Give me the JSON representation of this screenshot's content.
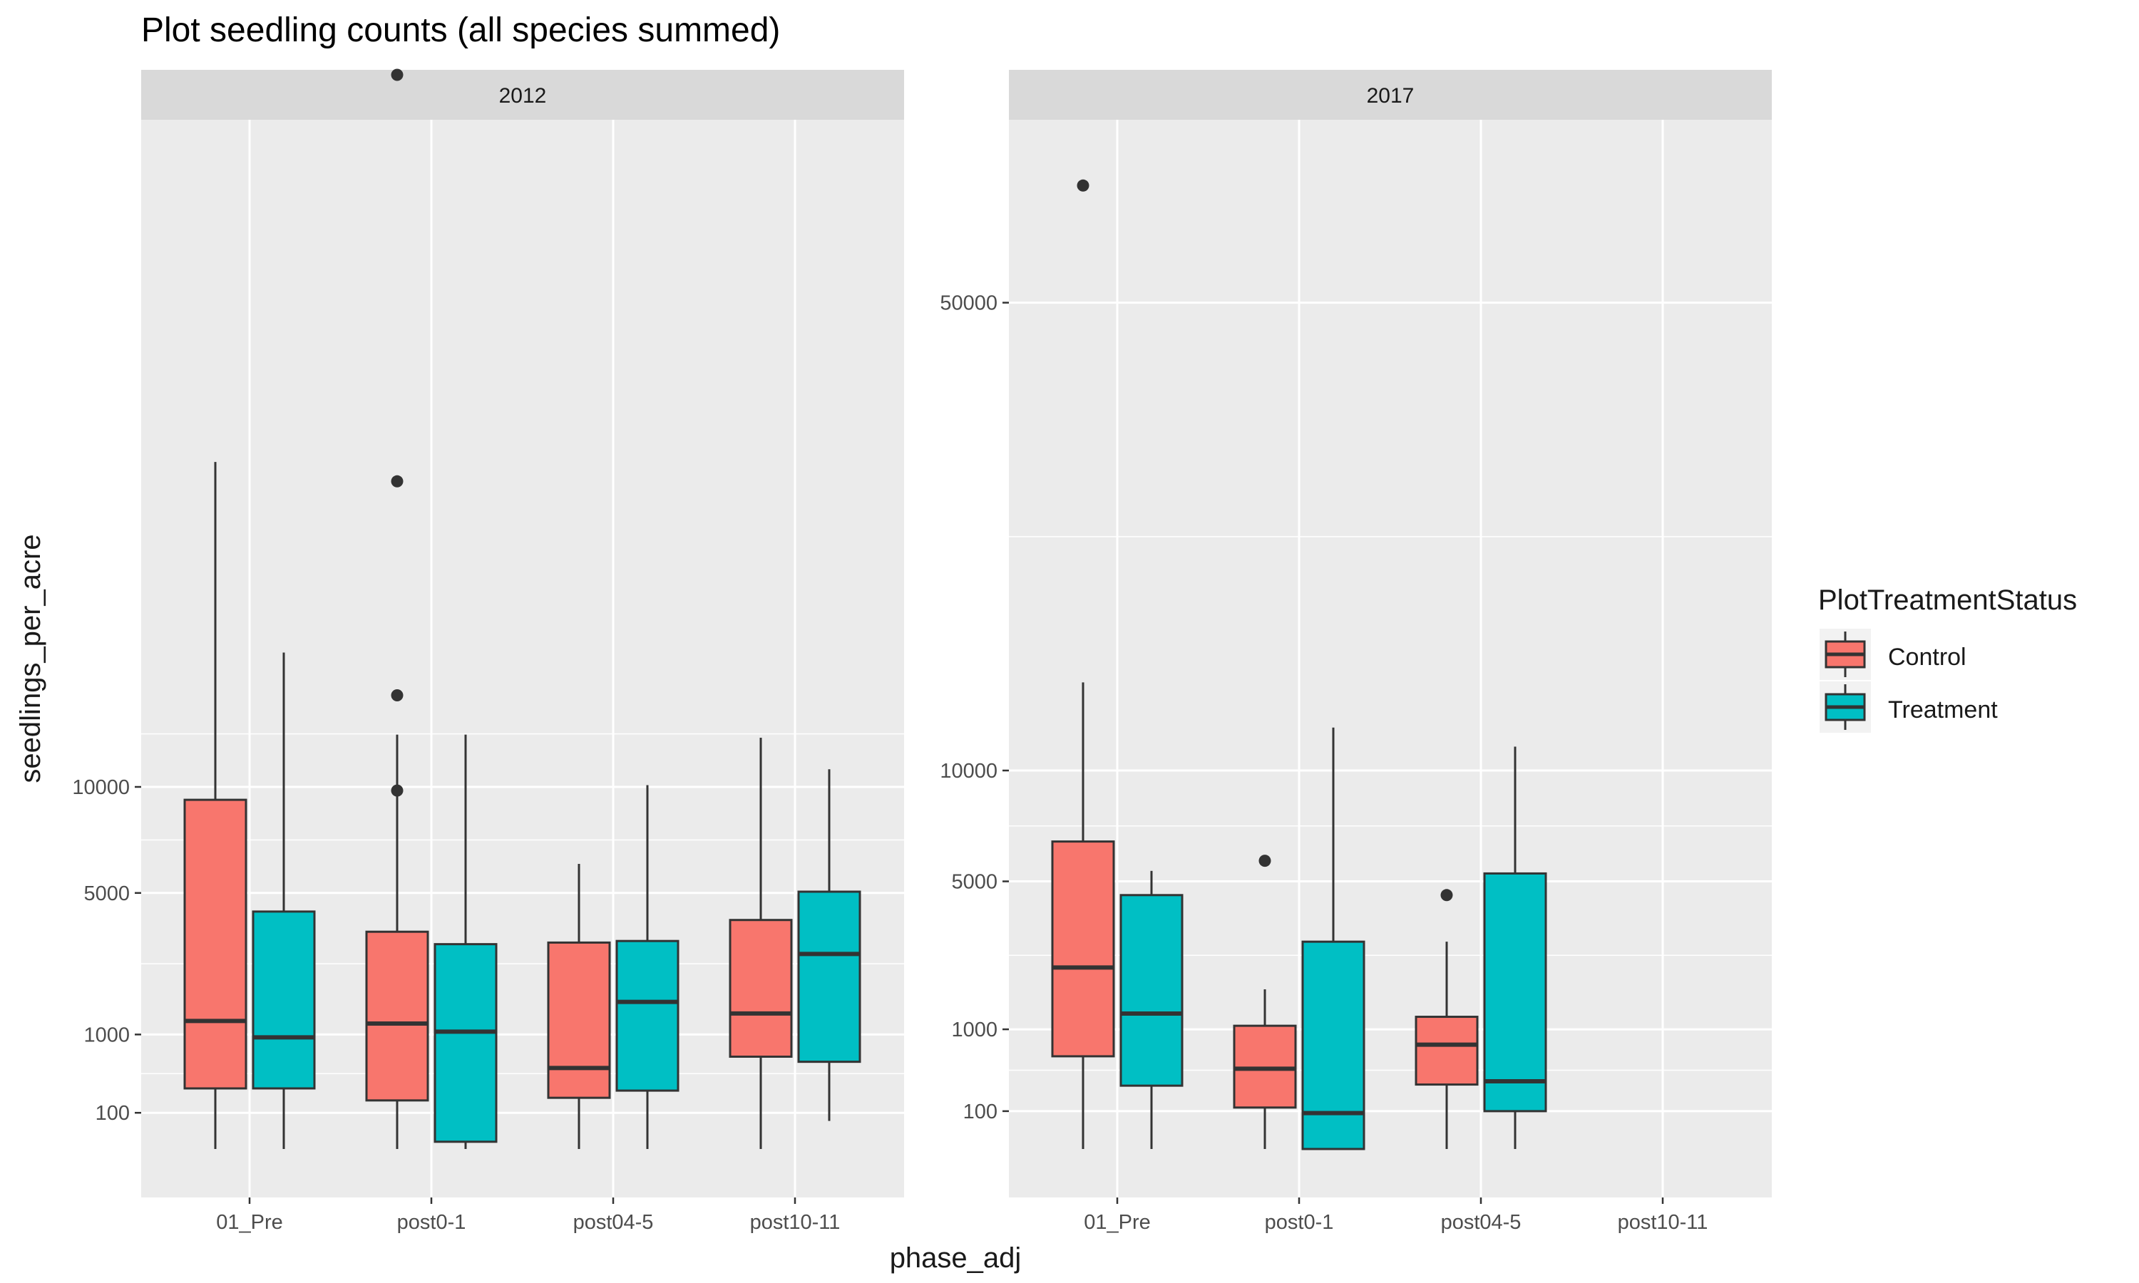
{
  "chart_data": {
    "type": "boxplot",
    "title": "Plot seedling counts (all species summed)",
    "xlabel": "phase_adj",
    "ylabel": "seedlings_per_acre",
    "y_scale": "sqrt",
    "legend": {
      "title": "PlotTreatmentStatus",
      "placement": "right",
      "entries": [
        {
          "name": "Control",
          "color": "#F8766D"
        },
        {
          "name": "Treatment",
          "color": "#00BFC4"
        }
      ]
    },
    "colors": {
      "panel_bg": "#EBEBEB",
      "strip_bg": "#D9D9D9",
      "grid": "#FFFFFF",
      "box_outline": "#333333"
    },
    "categories": [
      "01_Pre",
      "post0-1",
      "post04-5",
      "post10-11"
    ],
    "panels": [
      {
        "strip": "2012",
        "y_ticks": [
          100,
          1000,
          5000,
          10000
        ],
        "boxes": [
          {
            "category": "01_Pre",
            "group": "Control",
            "lower": 0,
            "q1": 280,
            "median": 1250,
            "q3": 9300,
            "upper": 36000,
            "outliers": []
          },
          {
            "category": "01_Pre",
            "group": "Treatment",
            "lower": 0,
            "q1": 280,
            "median": 950,
            "q3": 4300,
            "upper": 18800,
            "outliers": []
          },
          {
            "category": "post0-1",
            "group": "Control",
            "lower": 0,
            "q1": 180,
            "median": 1200,
            "q3": 3600,
            "upper": 13100,
            "outliers": [
              9800,
              15700,
              34000,
              88000
            ]
          },
          {
            "category": "post0-1",
            "group": "Treatment",
            "lower": 0,
            "q1": 4,
            "median": 1050,
            "q3": 3200,
            "upper": 13100,
            "outliers": []
          },
          {
            "category": "post04-5",
            "group": "Control",
            "lower": 0,
            "q1": 200,
            "median": 500,
            "q3": 3250,
            "upper": 6200,
            "outliers": []
          },
          {
            "category": "post04-5",
            "group": "Treatment",
            "lower": 0,
            "q1": 260,
            "median": 1650,
            "q3": 3300,
            "upper": 10100,
            "outliers": []
          },
          {
            "category": "post10-11",
            "group": "Control",
            "lower": 0,
            "q1": 650,
            "median": 1400,
            "q3": 4000,
            "upper": 12900,
            "outliers": []
          },
          {
            "category": "post10-11",
            "group": "Treatment",
            "lower": 60,
            "q1": 580,
            "median": 2900,
            "q3": 5050,
            "upper": 11000,
            "outliers": []
          }
        ]
      },
      {
        "strip": "2017",
        "y_ticks": [
          100,
          1000,
          5000,
          10000,
          50000
        ],
        "boxes": [
          {
            "category": "01_Pre",
            "group": "Control",
            "lower": 0,
            "q1": 600,
            "median": 2300,
            "q3": 6600,
            "upper": 15200,
            "outliers": [
              64800
            ]
          },
          {
            "category": "01_Pre",
            "group": "Treatment",
            "lower": 0,
            "q1": 280,
            "median": 1280,
            "q3": 4500,
            "upper": 5400,
            "outliers": []
          },
          {
            "category": "post0-1",
            "group": "Control",
            "lower": 0,
            "q1": 120,
            "median": 450,
            "q3": 1060,
            "upper": 1780,
            "outliers": [
              5800
            ]
          },
          {
            "category": "post0-1",
            "group": "Treatment",
            "lower": 0,
            "q1": 0,
            "median": 90,
            "q3": 3000,
            "upper": 12400,
            "outliers": []
          },
          {
            "category": "post04-5",
            "group": "Control",
            "lower": 0,
            "q1": 290,
            "median": 760,
            "q3": 1220,
            "upper": 3000,
            "outliers": [
              4500
            ]
          },
          {
            "category": "post04-5",
            "group": "Treatment",
            "lower": 0,
            "q1": 100,
            "median": 320,
            "q3": 5300,
            "upper": 11300,
            "outliers": []
          }
        ]
      }
    ]
  }
}
